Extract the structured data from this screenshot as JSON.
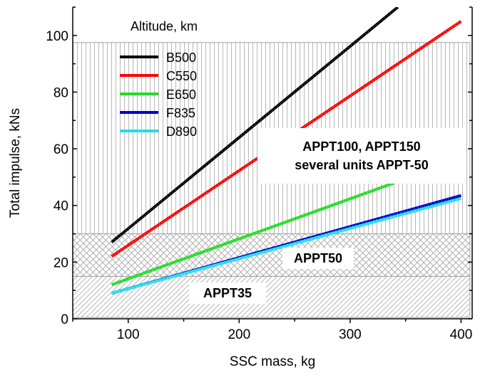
{
  "chart_data": {
    "type": "line",
    "xlabel": "SSC mass, kg",
    "ylabel": "Total impulse, kNs",
    "xlim": [
      50,
      410
    ],
    "ylim": [
      0,
      110
    ],
    "xticks": [
      100,
      200,
      300,
      400
    ],
    "yticks": [
      0,
      20,
      40,
      60,
      80,
      100
    ],
    "grid": false,
    "legend_title": "Altitude, km",
    "legend_position": "top-left",
    "series": [
      {
        "name": "B500",
        "color": "#000000",
        "x": [
          85,
          343
        ],
        "y": [
          27,
          110
        ]
      },
      {
        "name": "C550",
        "color": "#ff0000",
        "x": [
          85,
          400
        ],
        "y": [
          22,
          105
        ]
      },
      {
        "name": "E650",
        "color": "#22dd22",
        "x": [
          85,
          340
        ],
        "y": [
          12,
          48
        ]
      },
      {
        "name": "F835",
        "color": "#0000cc",
        "x": [
          85,
          400
        ],
        "y": [
          9,
          43.5
        ]
      },
      {
        "name": "D890",
        "color": "#22ddee",
        "x": [
          85,
          400
        ],
        "y": [
          9,
          42.5
        ]
      }
    ],
    "regions": [
      {
        "label": "APPT35",
        "x": [
          50,
          408
        ],
        "y": [
          0.5,
          15
        ],
        "pattern": "diagonal-hatch"
      },
      {
        "label": "APPT50",
        "x": [
          50,
          408
        ],
        "y": [
          15,
          30
        ],
        "pattern": "cross-hatch"
      },
      {
        "label_lines": [
          "APPT100, APPT150",
          "several units APPT-50"
        ],
        "x": [
          50,
          408
        ],
        "y": [
          30,
          97.5
        ],
        "pattern": "vertical-lines"
      }
    ]
  }
}
